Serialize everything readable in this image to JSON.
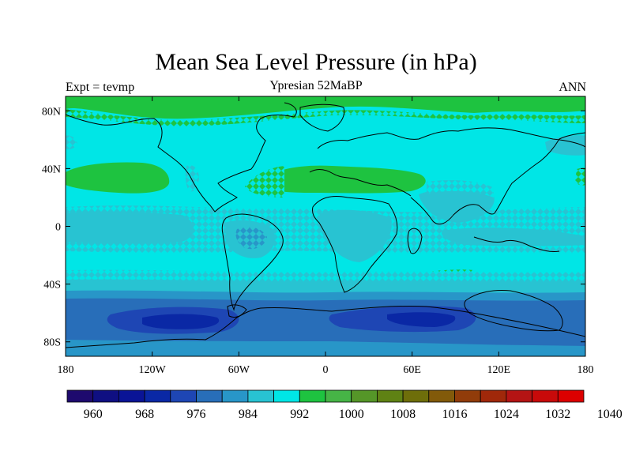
{
  "title": "Mean Sea Level Pressure (in hPa)",
  "subtitle": "Ypresian  52MaBP",
  "left_label": "Expt = tevmp",
  "right_label": "ANN",
  "lat_ticks": [
    {
      "label": "80N",
      "lat": 80
    },
    {
      "label": "40N",
      "lat": 40
    },
    {
      "label": "0",
      "lat": 0
    },
    {
      "label": "40S",
      "lat": -40
    },
    {
      "label": "80S",
      "lat": -80
    }
  ],
  "lon_ticks": [
    {
      "label": "180",
      "lon": -180
    },
    {
      "label": "120W",
      "lon": -120
    },
    {
      "label": "60W",
      "lon": -60
    },
    {
      "label": "0",
      "lon": 0
    },
    {
      "label": "60E",
      "lon": 60
    },
    {
      "label": "120E",
      "lon": 120
    },
    {
      "label": "180",
      "lon": 180
    }
  ],
  "colorbar": {
    "colors": [
      "#1e0a6e",
      "#0f0f82",
      "#0a1496",
      "#0a28a5",
      "#1e46b4",
      "#286eb9",
      "#2896c8",
      "#28c3d2",
      "#00e6e6",
      "#1ec340",
      "#46b446",
      "#559628",
      "#5f8214",
      "#6e6e0a",
      "#825a0a",
      "#913c0a",
      "#a0280a",
      "#b41414",
      "#c80a0a",
      "#dc0000"
    ],
    "labels": [
      "960",
      "968",
      "976",
      "984",
      "992",
      "1000",
      "1008",
      "1016",
      "1024",
      "1032",
      "1040"
    ]
  },
  "map": {
    "background_color": "#00e6e6",
    "axes": {
      "lon_range": [
        -180,
        180
      ],
      "lat_range": [
        -90,
        90
      ]
    }
  }
}
